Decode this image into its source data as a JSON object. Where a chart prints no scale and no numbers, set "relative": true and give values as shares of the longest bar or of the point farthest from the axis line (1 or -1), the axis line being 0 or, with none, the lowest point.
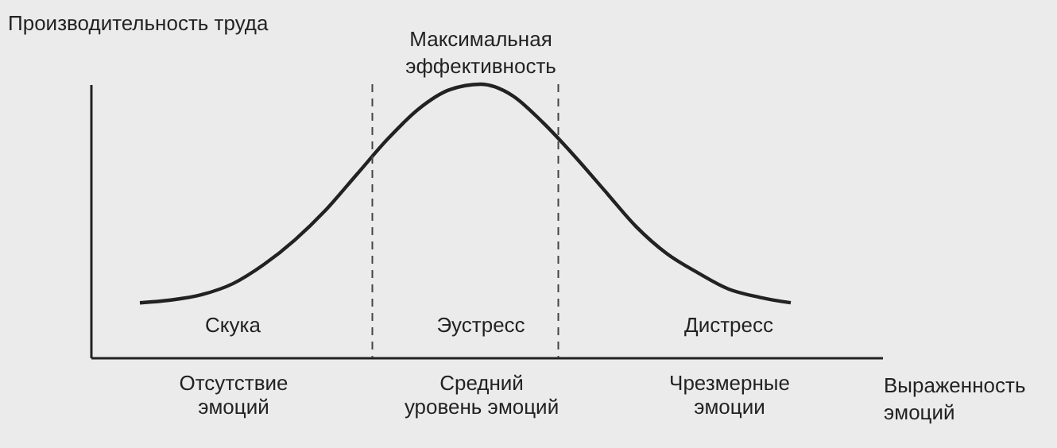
{
  "chart_data": {
    "type": "line",
    "relative": true,
    "xlabel": "Выраженность эмоций",
    "ylabel": "Производительность труда",
    "categories": [
      null,
      null,
      null,
      "Отсутствие эмоций",
      null,
      null,
      null,
      null,
      null,
      null,
      null,
      "Средний уровень эмоций",
      null,
      null,
      null,
      null,
      null,
      null,
      null,
      "Чрезмерные эмоции",
      null,
      null
    ],
    "series": [
      {
        "color": "#222222",
        "values": [
          0.2,
          0.21,
          0.23,
          0.27,
          0.34,
          0.43,
          0.54,
          0.67,
          0.8,
          0.91,
          0.98,
          1.0,
          0.96,
          0.86,
          0.74,
          0.61,
          0.48,
          0.38,
          0.31,
          0.25,
          0.22,
          0.2
        ]
      }
    ],
    "annotations": [
      "Максимальная эффективность",
      "Скука",
      "Эустресс",
      "Дистресс"
    ],
    "marker": "none",
    "line_style": "solid",
    "tick_labels": "x"
  }
}
